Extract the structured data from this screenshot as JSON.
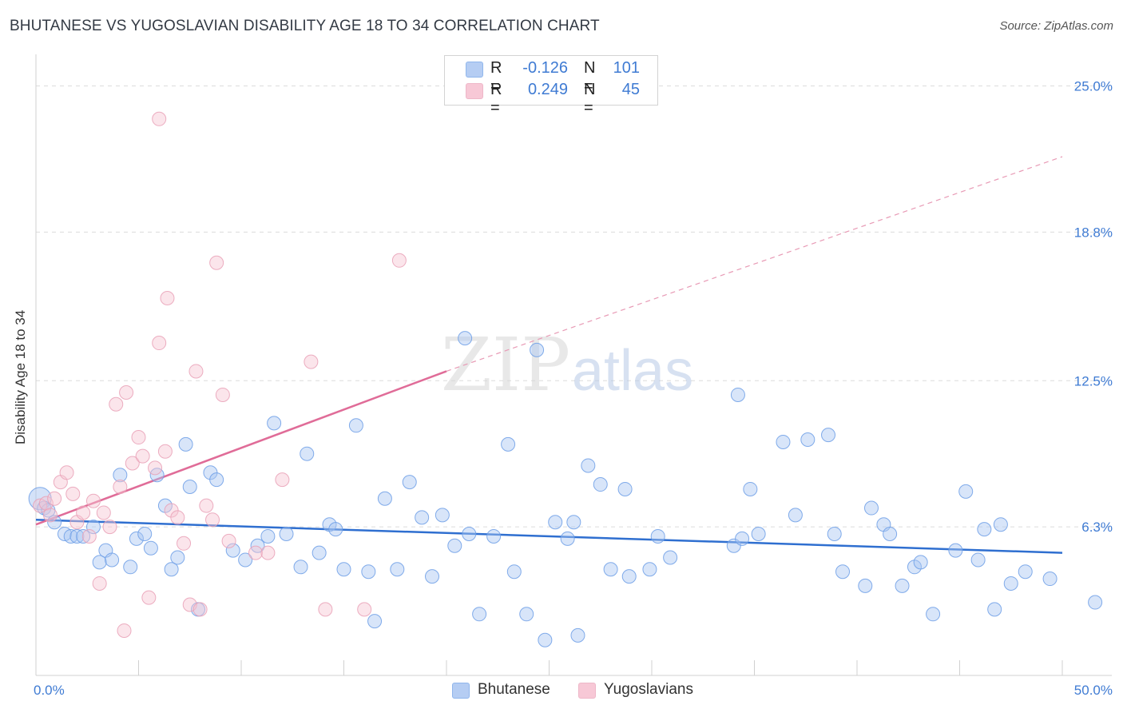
{
  "title": "BHUTANESE VS YUGOSLAVIAN DISABILITY AGE 18 TO 34 CORRELATION CHART",
  "source": "Source: ZipAtlas.com",
  "watermark": {
    "zip": "ZIP",
    "atlas": "atlas"
  },
  "legend": {
    "rows": [
      {
        "r_label": "R =",
        "r_value": "-0.126",
        "n_label": "N =",
        "n_value": "101",
        "color": "#9dbdf0"
      },
      {
        "r_label": "R =",
        "r_value": "0.249",
        "n_label": "N =",
        "n_value": "45",
        "color": "#f5b6c9"
      }
    ]
  },
  "bottom_legend": [
    {
      "label": "Bhutanese",
      "color": "#9dbdf0"
    },
    {
      "label": "Yugoslavians",
      "color": "#f5b6c9"
    }
  ],
  "chart_data": {
    "type": "scatter",
    "title": "BHUTANESE VS YUGOSLAVIAN DISABILITY AGE 18 TO 34 CORRELATION CHART",
    "xlabel": "",
    "ylabel": "Disability Age 18 to 34",
    "xlim": [
      0,
      50
    ],
    "ylim": [
      0,
      26
    ],
    "x_tick_labels": [
      "0.0%",
      "50.0%"
    ],
    "y_ticks": [
      6.3,
      12.5,
      18.8,
      25.0
    ],
    "y_tick_labels": [
      "6.3%",
      "12.5%",
      "18.8%",
      "25.0%"
    ],
    "grid": true,
    "legend_position": "top-center",
    "series": [
      {
        "name": "Bhutanese",
        "color": "#6c9ee6",
        "fill": "#a9c6f2",
        "r": -0.126,
        "n": 101,
        "trend": {
          "x0": 0,
          "y0": 6.6,
          "x1": 50,
          "y1": 5.2,
          "dashed_extension": false
        },
        "points": [
          [
            0.2,
            7.5
          ],
          [
            0.4,
            7.1
          ],
          [
            0.6,
            7.0
          ],
          [
            0.9,
            6.5
          ],
          [
            1.4,
            6.0
          ],
          [
            1.7,
            5.9
          ],
          [
            2.0,
            5.9
          ],
          [
            2.3,
            5.9
          ],
          [
            2.8,
            6.3
          ],
          [
            3.1,
            4.8
          ],
          [
            3.4,
            5.3
          ],
          [
            3.7,
            4.9
          ],
          [
            4.1,
            8.5
          ],
          [
            4.6,
            4.6
          ],
          [
            4.9,
            5.8
          ],
          [
            5.3,
            6.0
          ],
          [
            5.6,
            5.4
          ],
          [
            5.9,
            8.5
          ],
          [
            6.3,
            7.2
          ],
          [
            6.6,
            4.5
          ],
          [
            6.9,
            5.0
          ],
          [
            7.3,
            9.8
          ],
          [
            7.5,
            8.0
          ],
          [
            7.9,
            2.8
          ],
          [
            8.5,
            8.6
          ],
          [
            8.8,
            8.3
          ],
          [
            9.6,
            5.3
          ],
          [
            10.2,
            4.9
          ],
          [
            10.8,
            5.5
          ],
          [
            11.3,
            5.9
          ],
          [
            11.6,
            10.7
          ],
          [
            12.2,
            6.0
          ],
          [
            12.9,
            4.6
          ],
          [
            13.2,
            9.4
          ],
          [
            13.8,
            5.2
          ],
          [
            14.3,
            6.4
          ],
          [
            14.6,
            6.2
          ],
          [
            15.0,
            4.5
          ],
          [
            15.6,
            10.6
          ],
          [
            16.2,
            4.4
          ],
          [
            16.5,
            2.3
          ],
          [
            17.0,
            7.5
          ],
          [
            17.6,
            4.5
          ],
          [
            18.2,
            8.2
          ],
          [
            18.8,
            6.7
          ],
          [
            19.3,
            4.2
          ],
          [
            19.8,
            6.8
          ],
          [
            20.4,
            5.5
          ],
          [
            20.9,
            14.3
          ],
          [
            21.1,
            6.0
          ],
          [
            21.6,
            2.6
          ],
          [
            22.3,
            5.9
          ],
          [
            23.0,
            9.8
          ],
          [
            23.3,
            4.4
          ],
          [
            23.9,
            2.6
          ],
          [
            24.4,
            13.8
          ],
          [
            24.8,
            1.5
          ],
          [
            25.3,
            6.5
          ],
          [
            25.9,
            5.8
          ],
          [
            26.2,
            6.5
          ],
          [
            26.4,
            1.7
          ],
          [
            26.9,
            8.9
          ],
          [
            27.5,
            8.1
          ],
          [
            28.0,
            4.5
          ],
          [
            28.7,
            7.9
          ],
          [
            28.9,
            4.2
          ],
          [
            29.9,
            4.5
          ],
          [
            30.3,
            5.9
          ],
          [
            30.9,
            5.0
          ],
          [
            34.2,
            11.9
          ],
          [
            34.0,
            5.5
          ],
          [
            34.4,
            5.8
          ],
          [
            34.8,
            7.9
          ],
          [
            35.2,
            6.0
          ],
          [
            36.4,
            9.9
          ],
          [
            37.0,
            6.8
          ],
          [
            37.6,
            10.0
          ],
          [
            38.6,
            10.2
          ],
          [
            38.9,
            6.0
          ],
          [
            39.3,
            4.4
          ],
          [
            40.4,
            3.8
          ],
          [
            40.7,
            7.1
          ],
          [
            41.3,
            6.4
          ],
          [
            41.6,
            6.0
          ],
          [
            42.2,
            3.8
          ],
          [
            42.8,
            4.6
          ],
          [
            43.1,
            4.8
          ],
          [
            43.7,
            2.6
          ],
          [
            44.8,
            5.3
          ],
          [
            45.3,
            7.8
          ],
          [
            45.9,
            4.9
          ],
          [
            46.2,
            6.2
          ],
          [
            46.7,
            2.8
          ],
          [
            47.0,
            6.4
          ],
          [
            47.5,
            3.9
          ],
          [
            48.2,
            4.4
          ],
          [
            49.4,
            4.1
          ],
          [
            51.6,
            3.1
          ]
        ]
      },
      {
        "name": "Yugoslavians",
        "color": "#e9a0b6",
        "fill": "#f7c5d3",
        "r": 0.249,
        "n": 45,
        "trend": {
          "x0": 0,
          "y0": 6.4,
          "x1": 20,
          "y1": 12.9,
          "dashed_extension": true,
          "x_ext": 50,
          "y_ext": 22.0
        },
        "points": [
          [
            0.2,
            7.2
          ],
          [
            0.5,
            7.3
          ],
          [
            0.7,
            6.8
          ],
          [
            0.9,
            7.5
          ],
          [
            1.2,
            8.2
          ],
          [
            1.5,
            8.6
          ],
          [
            1.8,
            7.7
          ],
          [
            2.0,
            6.5
          ],
          [
            2.3,
            6.9
          ],
          [
            2.6,
            5.9
          ],
          [
            2.8,
            7.4
          ],
          [
            3.1,
            3.9
          ],
          [
            3.3,
            6.9
          ],
          [
            3.6,
            6.3
          ],
          [
            3.9,
            11.5
          ],
          [
            4.1,
            8.0
          ],
          [
            4.4,
            12.0
          ],
          [
            4.7,
            9.0
          ],
          [
            5.0,
            10.1
          ],
          [
            5.2,
            9.3
          ],
          [
            5.5,
            3.3
          ],
          [
            5.8,
            8.8
          ],
          [
            6.0,
            14.1
          ],
          [
            6.3,
            9.5
          ],
          [
            6.6,
            7.0
          ],
          [
            6.9,
            6.7
          ],
          [
            7.2,
            5.6
          ],
          [
            7.5,
            3.0
          ],
          [
            7.8,
            12.9
          ],
          [
            8.0,
            2.8
          ],
          [
            8.3,
            7.2
          ],
          [
            8.6,
            6.6
          ],
          [
            8.8,
            17.5
          ],
          [
            9.1,
            11.9
          ],
          [
            9.4,
            5.7
          ],
          [
            10.7,
            5.2
          ],
          [
            11.3,
            5.2
          ],
          [
            12.0,
            8.3
          ],
          [
            13.4,
            13.3
          ],
          [
            14.1,
            2.8
          ],
          [
            16.0,
            2.8
          ],
          [
            17.7,
            17.6
          ],
          [
            6.0,
            23.6
          ],
          [
            6.4,
            16.0
          ],
          [
            4.3,
            1.9
          ]
        ]
      }
    ]
  }
}
